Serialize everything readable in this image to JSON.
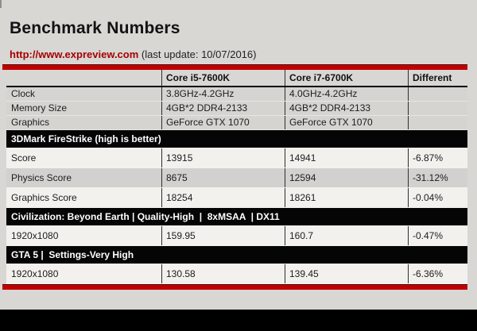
{
  "chart_data": {
    "type": "table",
    "title": "Benchmark Numbers",
    "source_url": "http://www.expreview.com",
    "update_note": " (last update: 10/07/2016)",
    "columns": [
      "",
      "Core i5-7600K",
      "Core i7-6700K",
      "Different"
    ],
    "spec_rows": [
      {
        "label": "Clock",
        "i5": "3.8GHz-4.2GHz",
        "i7": "4.0GHz-4.2GHz",
        "diff": ""
      },
      {
        "label": "Memory Size",
        "i5": "4GB*2 DDR4-2133",
        "i7": "4GB*2 DDR4-2133",
        "diff": ""
      },
      {
        "label": "Graphics",
        "i5": "GeForce GTX 1070",
        "i7": "GeForce GTX 1070",
        "diff": ""
      }
    ],
    "sections": [
      {
        "header": "3DMark FireStrike (high is better)",
        "rows": [
          {
            "label": "Score",
            "i5": "13915",
            "i7": "14941",
            "diff": "-6.87%"
          },
          {
            "label": "Physics Score",
            "i5": "8675",
            "i7": "12594",
            "diff": "-31.12%"
          },
          {
            "label": "Graphics Score",
            "i5": "18254",
            "i7": "18261",
            "diff": "-0.04%"
          }
        ]
      },
      {
        "header": "Civilization: Beyond Earth | Quality-High  |  8xMSAA  | DX11",
        "rows": [
          {
            "label": "1920x1080",
            "i5": "159.95",
            "i7": "160.7",
            "diff": "-0.47%"
          }
        ]
      },
      {
        "header": "GTA 5 |  Settings-Very High",
        "rows": [
          {
            "label": "1920x1080",
            "i5": "130.58",
            "i7": "139.45",
            "diff": "-6.36%"
          }
        ]
      }
    ],
    "colors": {
      "accent_red_bar": "#c10000",
      "link_red": "#a50000",
      "section_bar_black": "#050505",
      "row_light": "#f2f1ee",
      "row_alt": "#d2d1cf",
      "page_bg": "#d8d7d4"
    }
  }
}
